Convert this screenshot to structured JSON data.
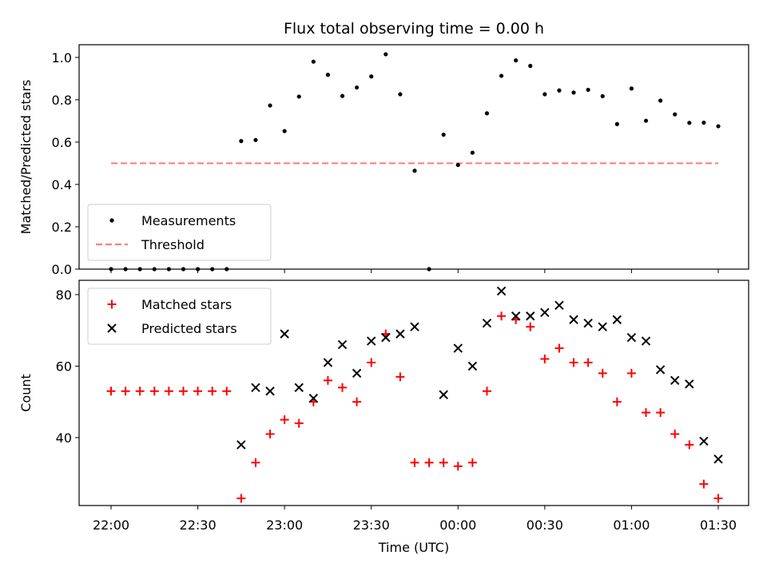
{
  "chart_data": {
    "type": "scatter",
    "title": "Flux total observing time = 0.00 h",
    "xlabel": "Time (UTC)",
    "x_ticks": [
      "22:00",
      "22:30",
      "23:00",
      "23:30",
      "00:00",
      "00:30",
      "01:00",
      "01:30"
    ],
    "times": [
      "22:00",
      "22:05",
      "22:10",
      "22:15",
      "22:20",
      "22:25",
      "22:30",
      "22:35",
      "22:40",
      "22:45",
      "22:50",
      "22:55",
      "23:00",
      "23:05",
      "23:10",
      "23:15",
      "23:20",
      "23:25",
      "23:30",
      "23:35",
      "23:40",
      "23:45",
      "23:50",
      "23:55",
      "00:00",
      "00:05",
      "00:10",
      "00:15",
      "00:20",
      "00:25",
      "00:30",
      "00:35",
      "00:40",
      "00:45",
      "00:50",
      "00:55",
      "01:00",
      "01:05",
      "01:10",
      "01:15",
      "01:20",
      "01:25",
      "01:30"
    ],
    "panels": [
      {
        "ylabel": "Matched/Predicted stars",
        "ylim": [
          0,
          1.06
        ],
        "yticks": [
          "0.0",
          "0.2",
          "0.4",
          "0.6",
          "0.8",
          "1.0"
        ],
        "legend_position": "lower-left",
        "threshold": {
          "name": "Threshold",
          "value": 0.5,
          "color": "#ff7f7f"
        },
        "series": [
          {
            "name": "Measurements",
            "marker": "dot",
            "color": "#000000",
            "points": [
              [
                "22:00",
                0.0
              ],
              [
                "22:05",
                0.0
              ],
              [
                "22:10",
                0.0
              ],
              [
                "22:15",
                0.0
              ],
              [
                "22:20",
                0.0
              ],
              [
                "22:25",
                0.0
              ],
              [
                "22:30",
                0.0
              ],
              [
                "22:35",
                0.0
              ],
              [
                "22:40",
                0.0
              ],
              [
                "22:45",
                0.605
              ],
              [
                "22:50",
                0.61
              ],
              [
                "22:55",
                0.773
              ],
              [
                "23:00",
                0.652
              ],
              [
                "23:05",
                0.815
              ],
              [
                "23:10",
                0.98
              ],
              [
                "23:15",
                0.918
              ],
              [
                "23:20",
                0.818
              ],
              [
                "23:25",
                0.858
              ],
              [
                "23:30",
                0.91
              ],
              [
                "23:35",
                1.015
              ],
              [
                "23:40",
                0.826
              ],
              [
                "23:45",
                0.465
              ],
              [
                "23:50",
                0.0
              ],
              [
                "23:55",
                0.635
              ],
              [
                "00:00",
                0.492
              ],
              [
                "00:05",
                0.55
              ],
              [
                "00:10",
                0.736
              ],
              [
                "00:15",
                0.913
              ],
              [
                "00:20",
                0.986
              ],
              [
                "00:25",
                0.96
              ],
              [
                "00:30",
                0.826
              ],
              [
                "00:35",
                0.844
              ],
              [
                "00:40",
                0.834
              ],
              [
                "00:45",
                0.847
              ],
              [
                "00:50",
                0.817
              ],
              [
                "00:55",
                0.685
              ],
              [
                "01:00",
                0.853
              ],
              [
                "01:05",
                0.701
              ],
              [
                "01:10",
                0.796
              ],
              [
                "01:15",
                0.731
              ],
              [
                "01:20",
                0.691
              ],
              [
                "01:25",
                0.692
              ],
              [
                "01:30",
                0.675
              ]
            ]
          }
        ]
      },
      {
        "ylabel": "Count",
        "ylim": [
          21,
          84
        ],
        "yticks": [
          "40",
          "60",
          "80"
        ],
        "legend_position": "upper-left",
        "series": [
          {
            "name": "Matched stars",
            "marker": "plus",
            "color": "#ff0000",
            "points": [
              [
                "22:00",
                53
              ],
              [
                "22:05",
                53
              ],
              [
                "22:10",
                53
              ],
              [
                "22:15",
                53
              ],
              [
                "22:20",
                53
              ],
              [
                "22:25",
                53
              ],
              [
                "22:30",
                53
              ],
              [
                "22:35",
                53
              ],
              [
                "22:40",
                53
              ],
              [
                "22:45",
                23
              ],
              [
                "22:50",
                33
              ],
              [
                "22:55",
                41
              ],
              [
                "23:00",
                45
              ],
              [
                "23:05",
                44
              ],
              [
                "23:10",
                50
              ],
              [
                "23:15",
                56
              ],
              [
                "23:20",
                54
              ],
              [
                "23:25",
                50
              ],
              [
                "23:30",
                61
              ],
              [
                "23:35",
                69
              ],
              [
                "23:40",
                57
              ],
              [
                "23:45",
                33
              ],
              [
                "23:50",
                33
              ],
              [
                "23:55",
                33
              ],
              [
                "00:00",
                32
              ],
              [
                "00:05",
                33
              ],
              [
                "00:10",
                53
              ],
              [
                "00:15",
                74
              ],
              [
                "00:20",
                73
              ],
              [
                "00:25",
                71
              ],
              [
                "00:30",
                62
              ],
              [
                "00:35",
                65
              ],
              [
                "00:40",
                61
              ],
              [
                "00:45",
                61
              ],
              [
                "00:50",
                58
              ],
              [
                "00:55",
                50
              ],
              [
                "01:00",
                58
              ],
              [
                "01:05",
                47
              ],
              [
                "01:10",
                47
              ],
              [
                "01:15",
                41
              ],
              [
                "01:20",
                38
              ],
              [
                "01:25",
                27
              ],
              [
                "01:30",
                23
              ]
            ]
          },
          {
            "name": "Predicted stars",
            "marker": "x",
            "color": "#000000",
            "points": [
              [
                "22:45",
                38
              ],
              [
                "22:50",
                54
              ],
              [
                "22:55",
                53
              ],
              [
                "23:00",
                69
              ],
              [
                "23:05",
                54
              ],
              [
                "23:10",
                51
              ],
              [
                "23:15",
                61
              ],
              [
                "23:20",
                66
              ],
              [
                "23:25",
                58
              ],
              [
                "23:30",
                67
              ],
              [
                "23:35",
                68
              ],
              [
                "23:40",
                69
              ],
              [
                "23:45",
                71
              ],
              [
                "23:55",
                52
              ],
              [
                "00:00",
                65
              ],
              [
                "00:05",
                60
              ],
              [
                "00:10",
                72
              ],
              [
                "00:15",
                81
              ],
              [
                "00:20",
                74
              ],
              [
                "00:25",
                74
              ],
              [
                "00:30",
                75
              ],
              [
                "00:35",
                77
              ],
              [
                "00:40",
                73
              ],
              [
                "00:45",
                72
              ],
              [
                "00:50",
                71
              ],
              [
                "00:55",
                73
              ],
              [
                "01:00",
                68
              ],
              [
                "01:05",
                67
              ],
              [
                "01:10",
                59
              ],
              [
                "01:15",
                56
              ],
              [
                "01:20",
                55
              ],
              [
                "01:25",
                39
              ],
              [
                "01:30",
                34
              ]
            ]
          }
        ]
      }
    ]
  }
}
